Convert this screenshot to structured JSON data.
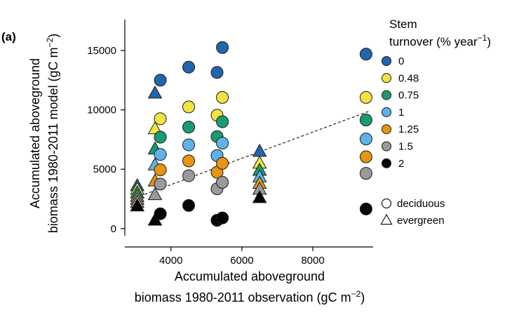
{
  "chart_data": {
    "type": "scatter",
    "panel_label": "(a)",
    "xlabel_line1": "Accumulated aboveground",
    "xlabel_line2_main": "biomass 1980-2011 observation (gC m",
    "xlabel_line2_sup": "−2",
    "xlabel_line2_end": ")",
    "ylabel_line1": "Accumulated aboveground",
    "ylabel_line2_main": "biomass 1980-2011 model (gC m",
    "ylabel_line2_sup": "−2",
    "ylabel_line2_end": ")",
    "xlim": [
      2700,
      9700
    ],
    "ylim": [
      -600,
      17600
    ],
    "xticks": [
      4000,
      6000,
      8000
    ],
    "xtick_labels": [
      "4000",
      "6000",
      "8000"
    ],
    "yticks": [
      0,
      5000,
      10000,
      15000
    ],
    "ytick_labels": [
      "0",
      "5000",
      "10000",
      "15000"
    ],
    "grid": false,
    "legend_position": "right",
    "legend_title_line1": "Stem",
    "legend_title_line2_main": "turnover (% year",
    "legend_title_line2_sup": "−1",
    "legend_title_line2_end": ")",
    "marker_legend": [
      {
        "label": "deciduous",
        "marker": "circle"
      },
      {
        "label": "evergreen",
        "marker": "triangle"
      }
    ],
    "trend_line": {
      "style": "dashed",
      "x": [
        3000,
        9600
      ],
      "y": [
        2600,
        9900
      ]
    },
    "series": [
      {
        "name": "0",
        "color": "#2166ac",
        "deciduous": [
          [
            3700,
            12500
          ],
          [
            4500,
            13600
          ],
          [
            5300,
            13150
          ],
          [
            5450,
            15250
          ],
          [
            9500,
            14700
          ]
        ],
        "evergreen": [
          [
            3050,
            3600
          ],
          [
            3550,
            11400
          ],
          [
            6500,
            6500
          ]
        ]
      },
      {
        "name": "0.48",
        "color": "#f0e442",
        "deciduous": [
          [
            3700,
            9250
          ],
          [
            4500,
            10250
          ],
          [
            5300,
            9550
          ],
          [
            5450,
            11050
          ],
          [
            9500,
            11050
          ]
        ],
        "evergreen": [
          [
            3050,
            3300
          ],
          [
            3550,
            8400
          ],
          [
            6500,
            5500
          ]
        ]
      },
      {
        "name": "0.75",
        "color": "#1a9b74",
        "deciduous": [
          [
            3700,
            7700
          ],
          [
            4500,
            8550
          ],
          [
            5300,
            7750
          ],
          [
            5450,
            9000
          ],
          [
            9500,
            9150
          ]
        ],
        "evergreen": [
          [
            3050,
            3000
          ],
          [
            3550,
            6700
          ],
          [
            6500,
            4900
          ]
        ]
      },
      {
        "name": "1",
        "color": "#5eb4e8",
        "deciduous": [
          [
            3700,
            6250
          ],
          [
            4500,
            7050
          ],
          [
            5300,
            6150
          ],
          [
            5450,
            7200
          ],
          [
            9500,
            7550
          ]
        ],
        "evergreen": [
          [
            3050,
            2700
          ],
          [
            3550,
            5350
          ],
          [
            6500,
            4350
          ]
        ]
      },
      {
        "name": "1.25",
        "color": "#e69512",
        "deciduous": [
          [
            3700,
            4950
          ],
          [
            4500,
            5700
          ],
          [
            5300,
            4750
          ],
          [
            5450,
            5500
          ],
          [
            9500,
            6050
          ]
        ],
        "evergreen": [
          [
            3050,
            2450
          ],
          [
            3550,
            4000
          ],
          [
            6500,
            3800
          ]
        ]
      },
      {
        "name": "1.5",
        "color": "#9a9a9a",
        "deciduous": [
          [
            3700,
            3750
          ],
          [
            4500,
            4450
          ],
          [
            5300,
            3350
          ],
          [
            5450,
            3900
          ],
          [
            9500,
            4650
          ]
        ],
        "evergreen": [
          [
            3050,
            2200
          ],
          [
            3550,
            2850
          ],
          [
            6500,
            3300
          ]
        ]
      },
      {
        "name": "2",
        "color": "#050505",
        "deciduous": [
          [
            3700,
            1250
          ],
          [
            4500,
            1950
          ],
          [
            5300,
            700
          ],
          [
            5450,
            900
          ],
          [
            9500,
            1650
          ]
        ],
        "evergreen": [
          [
            3050,
            1900
          ],
          [
            3550,
            700
          ],
          [
            6500,
            2600
          ]
        ]
      }
    ]
  }
}
